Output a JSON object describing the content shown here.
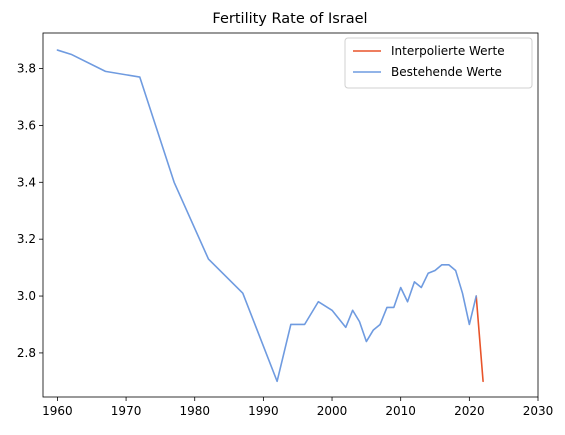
{
  "chart_data": {
    "type": "line",
    "title": "Fertility Rate of Israel",
    "xlabel": "",
    "ylabel": "",
    "xlim": [
      1957.9,
      2030
    ],
    "ylim": [
      2.645,
      3.925
    ],
    "x_ticks": [
      1960,
      1970,
      1980,
      1990,
      2000,
      2010,
      2020,
      2030
    ],
    "y_ticks": [
      2.8,
      3.0,
      3.2,
      3.4,
      3.6,
      3.8
    ],
    "y_tick_labels": [
      "2.8",
      "3.0",
      "3.2",
      "3.4",
      "3.6",
      "3.8"
    ],
    "grid": false,
    "legend_position": "top-right",
    "series": [
      {
        "name": "Interpolierte Werte",
        "color": "#E8542A",
        "x": [
          2021,
          2022
        ],
        "y": [
          3.0,
          2.7
        ]
      },
      {
        "name": "Bestehende Werte",
        "color": "#6F9BE0",
        "x": [
          1960,
          1962,
          1967,
          1972,
          1977,
          1982,
          1987,
          1992,
          1994,
          1996,
          1998,
          2000,
          2002,
          2003,
          2004,
          2005,
          2006,
          2007,
          2008,
          2009,
          2010,
          2011,
          2012,
          2013,
          2014,
          2015,
          2016,
          2017,
          2018,
          2019,
          2020,
          2021
        ],
        "y": [
          3.865,
          3.85,
          3.79,
          3.77,
          3.4,
          3.13,
          3.01,
          2.7,
          2.9,
          2.9,
          2.98,
          2.95,
          2.89,
          2.95,
          2.91,
          2.84,
          2.88,
          2.9,
          2.96,
          2.96,
          3.03,
          2.98,
          3.05,
          3.03,
          3.08,
          3.09,
          3.11,
          3.11,
          3.09,
          3.01,
          2.9,
          3.0
        ]
      }
    ]
  }
}
